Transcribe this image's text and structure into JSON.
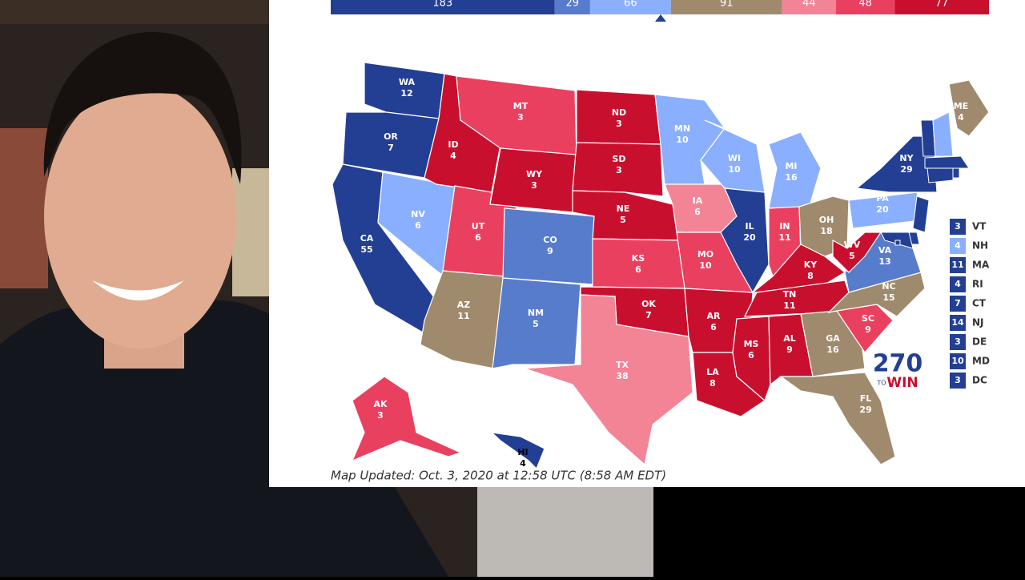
{
  "top_bar": {
    "segments": [
      {
        "value": 183,
        "color": "#233f94"
      },
      {
        "value": 29,
        "color": "#577ccc"
      },
      {
        "value": 66,
        "color": "#8aaffe"
      },
      {
        "value": 91,
        "color": "#a08a6e"
      },
      {
        "value": 44,
        "color": "#f28496"
      },
      {
        "value": 48,
        "color": "#ea4060"
      },
      {
        "value": 77,
        "color": "#c8102e"
      }
    ]
  },
  "states": [
    {
      "abbr": "WA",
      "ev": 12,
      "color": "#233f94"
    },
    {
      "abbr": "OR",
      "ev": 7,
      "color": "#233f94"
    },
    {
      "abbr": "CA",
      "ev": 55,
      "color": "#233f94"
    },
    {
      "abbr": "NV",
      "ev": 6,
      "color": "#8aaffe"
    },
    {
      "abbr": "ID",
      "ev": 4,
      "color": "#c8102e"
    },
    {
      "abbr": "MT",
      "ev": 3,
      "color": "#ea4060"
    },
    {
      "abbr": "WY",
      "ev": 3,
      "color": "#c8102e"
    },
    {
      "abbr": "UT",
      "ev": 6,
      "color": "#ea4060"
    },
    {
      "abbr": "AZ",
      "ev": 11,
      "color": "#a08a6e"
    },
    {
      "abbr": "CO",
      "ev": 9,
      "color": "#577ccc"
    },
    {
      "abbr": "NM",
      "ev": 5,
      "color": "#577ccc"
    },
    {
      "abbr": "ND",
      "ev": 3,
      "color": "#c8102e"
    },
    {
      "abbr": "SD",
      "ev": 3,
      "color": "#c8102e"
    },
    {
      "abbr": "NE",
      "ev": 5,
      "color": "#c8102e"
    },
    {
      "abbr": "KS",
      "ev": 6,
      "color": "#ea4060"
    },
    {
      "abbr": "OK",
      "ev": 7,
      "color": "#c8102e"
    },
    {
      "abbr": "TX",
      "ev": 38,
      "color": "#f28496"
    },
    {
      "abbr": "MN",
      "ev": 10,
      "color": "#8aaffe"
    },
    {
      "abbr": "IA",
      "ev": 6,
      "color": "#f28496"
    },
    {
      "abbr": "MO",
      "ev": 10,
      "color": "#ea4060"
    },
    {
      "abbr": "AR",
      "ev": 6,
      "color": "#c8102e"
    },
    {
      "abbr": "LA",
      "ev": 8,
      "color": "#c8102e"
    },
    {
      "abbr": "WI",
      "ev": 10,
      "color": "#8aaffe"
    },
    {
      "abbr": "IL",
      "ev": 20,
      "color": "#233f94"
    },
    {
      "abbr": "MI",
      "ev": 16,
      "color": "#8aaffe"
    },
    {
      "abbr": "IN",
      "ev": 11,
      "color": "#ea4060"
    },
    {
      "abbr": "OH",
      "ev": 18,
      "color": "#a08a6e"
    },
    {
      "abbr": "KY",
      "ev": 8,
      "color": "#c8102e"
    },
    {
      "abbr": "TN",
      "ev": 11,
      "color": "#c8102e"
    },
    {
      "abbr": "MS",
      "ev": 6,
      "color": "#c8102e"
    },
    {
      "abbr": "AL",
      "ev": 9,
      "color": "#c8102e"
    },
    {
      "abbr": "GA",
      "ev": 16,
      "color": "#a08a6e"
    },
    {
      "abbr": "FL",
      "ev": 29,
      "color": "#a08a6e"
    },
    {
      "abbr": "SC",
      "ev": 9,
      "color": "#ea4060"
    },
    {
      "abbr": "NC",
      "ev": 15,
      "color": "#a08a6e"
    },
    {
      "abbr": "VA",
      "ev": 13,
      "color": "#577ccc"
    },
    {
      "abbr": "WV",
      "ev": 5,
      "color": "#c8102e"
    },
    {
      "abbr": "PA",
      "ev": 20,
      "color": "#8aaffe"
    },
    {
      "abbr": "NY",
      "ev": 29,
      "color": "#233f94"
    },
    {
      "abbr": "ME",
      "ev": 4,
      "color": "#a08a6e"
    },
    {
      "abbr": "AK",
      "ev": 3,
      "color": "#ea4060"
    },
    {
      "abbr": "HI",
      "ev": 4,
      "color": "#233f94"
    }
  ],
  "small_states": [
    {
      "abbr": "VT",
      "ev": 3,
      "color": "#233f94"
    },
    {
      "abbr": "NH",
      "ev": 4,
      "color": "#8aaffe"
    },
    {
      "abbr": "MA",
      "ev": 11,
      "color": "#233f94"
    },
    {
      "abbr": "RI",
      "ev": 4,
      "color": "#233f94"
    },
    {
      "abbr": "CT",
      "ev": 7,
      "color": "#233f94"
    },
    {
      "abbr": "NJ",
      "ev": 14,
      "color": "#233f94"
    },
    {
      "abbr": "DE",
      "ev": 3,
      "color": "#233f94"
    },
    {
      "abbr": "MD",
      "ev": 10,
      "color": "#233f94"
    },
    {
      "abbr": "DC",
      "ev": 3,
      "color": "#233f94"
    }
  ],
  "logo": {
    "number": "270",
    "to": "TO",
    "win": "WIN"
  },
  "map_updated": "Map Updated: Oct. 3, 2020 at 12:58 UTC (8:58 AM EDT)"
}
